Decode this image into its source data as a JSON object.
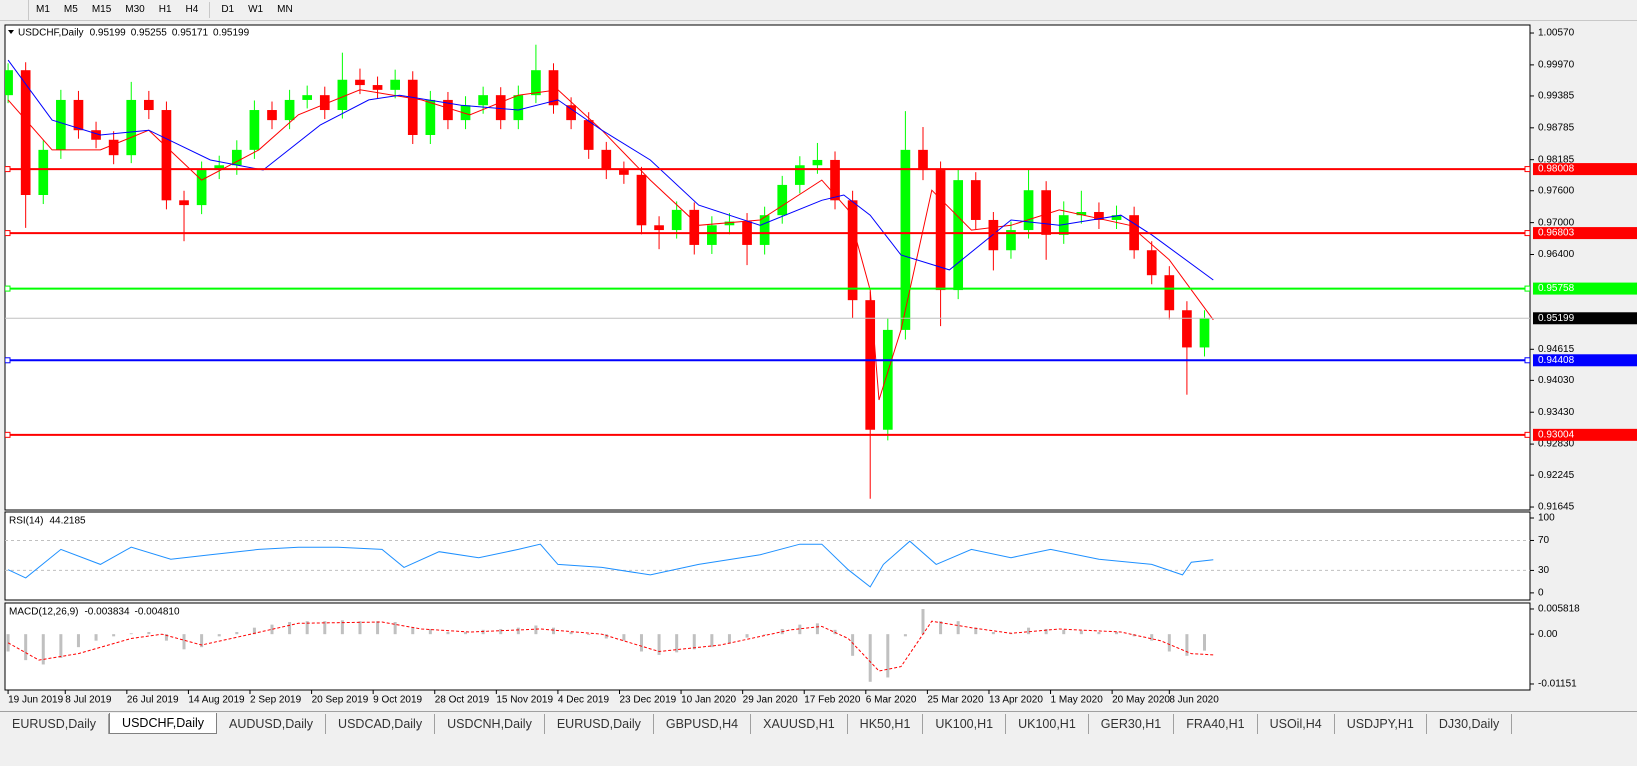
{
  "toolbar": {
    "timeframes": [
      "M1",
      "M5",
      "M15",
      "M30",
      "H1",
      "H4",
      "D1",
      "W1",
      "MN"
    ]
  },
  "chart_data": [
    {
      "type": "candlestick",
      "title": "USDCHF,Daily",
      "readout": [
        0.95199,
        0.95255,
        0.95171,
        0.95199
      ],
      "up_color": "#00ff00",
      "down_color": "#ff0000",
      "x": [
        0,
        4,
        8,
        12,
        16,
        20,
        24,
        28,
        32,
        36,
        40,
        44,
        48,
        52,
        56,
        60,
        64,
        68,
        72,
        76,
        80,
        84,
        88,
        92,
        96,
        100,
        104,
        108,
        112,
        116,
        120,
        124,
        128,
        132,
        136,
        140,
        144,
        148,
        152,
        156,
        160,
        164,
        168,
        172,
        176,
        180,
        184,
        188,
        192,
        196,
        200,
        204,
        208,
        212,
        216,
        220,
        224,
        228,
        232,
        236,
        240,
        244,
        248,
        252,
        256,
        260,
        264,
        268,
        272
      ],
      "open": [
        0.994,
        0.9987,
        0.9752,
        0.9837,
        0.9931,
        0.9874,
        0.9856,
        0.9827,
        0.9931,
        0.9912,
        0.9742,
        0.9733,
        0.9799,
        0.9808,
        0.9837,
        0.9912,
        0.9893,
        0.9931,
        0.994,
        0.9912,
        0.9969,
        0.9959,
        0.995,
        0.9969,
        0.9865,
        0.9931,
        0.9893,
        0.9921,
        0.994,
        0.9893,
        0.994,
        0.9987,
        0.9921,
        0.9893,
        0.9837,
        0.9799,
        0.979,
        0.9695,
        0.9686,
        0.9724,
        0.9658,
        0.9695,
        0.9702,
        0.9658,
        0.9714,
        0.9771,
        0.9808,
        0.9818,
        0.9742,
        0.9554,
        0.931,
        0.9498,
        0.9837,
        0.9799,
        0.9573,
        0.978,
        0.9705,
        0.9648,
        0.9686,
        0.9761,
        0.9677,
        0.9714,
        0.972,
        0.9705,
        0.9714,
        0.9648,
        0.9601,
        0.9535,
        0.9465
      ],
      "high": [
        1.0,
        1.0002,
        0.9855,
        0.995,
        0.9948,
        0.989,
        0.9872,
        0.9965,
        0.9948,
        0.9928,
        0.976,
        0.9815,
        0.9826,
        0.9855,
        0.993,
        0.9928,
        0.995,
        0.9958,
        0.9956,
        1.002,
        0.999,
        0.9975,
        0.9988,
        0.9985,
        0.9948,
        0.9946,
        0.9938,
        0.9956,
        0.9955,
        0.9958,
        1.0035,
        1.0,
        0.9936,
        0.9908,
        0.9852,
        0.9815,
        0.9805,
        0.9712,
        0.974,
        0.9738,
        0.9712,
        0.9718,
        0.9718,
        0.973,
        0.9788,
        0.9825,
        0.985,
        0.9834,
        0.976,
        0.957,
        0.952,
        0.991,
        0.988,
        0.9815,
        0.98,
        0.9795,
        0.972,
        0.9702,
        0.98,
        0.9778,
        0.974,
        0.976,
        0.9738,
        0.9732,
        0.973,
        0.9665,
        0.9618,
        0.9552,
        0.9535
      ],
      "low": [
        0.9925,
        0.969,
        0.9735,
        0.982,
        0.9858,
        0.984,
        0.981,
        0.9812,
        0.9895,
        0.9725,
        0.9665,
        0.9716,
        0.9782,
        0.979,
        0.982,
        0.9876,
        0.9876,
        0.9915,
        0.9895,
        0.9896,
        0.9942,
        0.9934,
        0.9934,
        0.9848,
        0.9848,
        0.9876,
        0.9876,
        0.9905,
        0.9876,
        0.9876,
        0.9925,
        0.9905,
        0.9876,
        0.982,
        0.9782,
        0.9773,
        0.9678,
        0.965,
        0.967,
        0.964,
        0.9641,
        0.9678,
        0.962,
        0.964,
        0.9698,
        0.9755,
        0.9792,
        0.9725,
        0.952,
        0.918,
        0.929,
        0.948,
        0.978,
        0.9505,
        0.9556,
        0.9688,
        0.961,
        0.9632,
        0.967,
        0.963,
        0.966,
        0.9698,
        0.9688,
        0.9688,
        0.9632,
        0.9584,
        0.9518,
        0.9376,
        0.9448
      ],
      "close": [
        0.9987,
        0.9752,
        0.9837,
        0.9931,
        0.9874,
        0.9856,
        0.9827,
        0.9931,
        0.9912,
        0.9742,
        0.9733,
        0.9799,
        0.9808,
        0.9837,
        0.9912,
        0.9893,
        0.9931,
        0.994,
        0.9912,
        0.9969,
        0.9959,
        0.995,
        0.9969,
        0.9865,
        0.9931,
        0.9893,
        0.9921,
        0.994,
        0.9893,
        0.994,
        0.9987,
        0.9921,
        0.9893,
        0.9837,
        0.9799,
        0.979,
        0.9695,
        0.9686,
        0.9724,
        0.9658,
        0.9695,
        0.9702,
        0.9658,
        0.9714,
        0.9771,
        0.9808,
        0.9818,
        0.9742,
        0.9554,
        0.931,
        0.9498,
        0.9837,
        0.9799,
        0.9573,
        0.978,
        0.9705,
        0.9648,
        0.9686,
        0.9761,
        0.9677,
        0.9714,
        0.972,
        0.9705,
        0.9714,
        0.9648,
        0.9601,
        0.9535,
        0.9465,
        0.952
      ],
      "lines": [
        {
          "color": "#ff0000",
          "x": [
            0,
            10,
            21,
            32,
            44,
            57,
            66,
            80,
            94,
            105,
            116,
            125,
            135,
            146,
            157,
            171,
            185,
            191,
            196,
            198,
            203,
            210,
            219,
            228,
            239,
            255,
            264,
            274
          ],
          "values": [
            0.9931,
            0.9837,
            0.9837,
            0.9874,
            0.978,
            0.9837,
            0.9903,
            0.995,
            0.9931,
            0.9903,
            0.994,
            0.995,
            0.9874,
            0.978,
            0.9695,
            0.9705,
            0.978,
            0.9724,
            0.9573,
            0.9366,
            0.9498,
            0.9761,
            0.9686,
            0.9695,
            0.9724,
            0.9695,
            0.963,
            0.9517
          ]
        },
        {
          "color": "#0000ff",
          "x": [
            0,
            10,
            21,
            32,
            46,
            58,
            71,
            82,
            89,
            103,
            116,
            125,
            135,
            146,
            157,
            171,
            185,
            190,
            196,
            203,
            214,
            228,
            239,
            253,
            260,
            274
          ],
          "values": [
            1.0006,
            0.9893,
            0.9865,
            0.9874,
            0.9818,
            0.9799,
            0.9884,
            0.9931,
            0.994,
            0.9921,
            0.9912,
            0.9931,
            0.9874,
            0.9818,
            0.9733,
            0.9695,
            0.9742,
            0.9752,
            0.9714,
            0.9639,
            0.9611,
            0.9705,
            0.9695,
            0.9714,
            0.9677,
            0.9592
          ]
        }
      ],
      "levels": [
        {
          "value": 0.98008,
          "color": "#ff0000"
        },
        {
          "value": 0.96803,
          "color": "#ff0000"
        },
        {
          "value": 0.95758,
          "color": "#00ff00"
        },
        {
          "value": 0.94408,
          "color": "#0000ff"
        },
        {
          "value": 0.93004,
          "color": "#ff0000"
        }
      ],
      "last_price": 0.95199,
      "xlim": [
        -0.7,
        346
      ],
      "ylim": [
        0.91589,
        1.00721
      ],
      "yticks": [
        {
          "value": 1.0057,
          "label": "1.00570"
        },
        {
          "value": 0.9997,
          "label": "0.99970"
        },
        0.99385,
        0.98785,
        0.98185,
        {
          "value": 0.976,
          "label": "0.97600"
        },
        {
          "value": 0.97,
          "label": "0.97000"
        },
        {
          "value": 0.964,
          "label": "0.96400"
        },
        0.94615,
        {
          "value": 0.9403,
          "label": "0.94030"
        },
        {
          "value": 0.9343,
          "label": "0.93430"
        },
        {
          "value": 0.9283,
          "label": "0.92830"
        },
        0.92245,
        0.91645
      ],
      "xticks": [
        {
          "value": 0,
          "label": "19 Jun 2019"
        },
        {
          "value": 13,
          "label": "8 Jul 2019"
        },
        {
          "value": 27,
          "label": "26 Jul 2019"
        },
        {
          "value": 41,
          "label": "14 Aug 2019"
        },
        {
          "value": 55,
          "label": "2 Sep 2019"
        },
        {
          "value": 69,
          "label": "20 Sep 2019"
        },
        {
          "value": 83,
          "label": "9 Oct 2019"
        },
        {
          "value": 97,
          "label": "28 Oct 2019"
        },
        {
          "value": 111,
          "label": "15 Nov 2019"
        },
        {
          "value": 125,
          "label": "4 Dec 2019"
        },
        {
          "value": 139,
          "label": "23 Dec 2019"
        },
        {
          "value": 153,
          "label": "10 Jan 2020"
        },
        {
          "value": 167,
          "label": "29 Jan 2020"
        },
        {
          "value": 181,
          "label": "17 Feb 2020"
        },
        {
          "value": 195,
          "label": "6 Mar 2020"
        },
        {
          "value": 209,
          "label": "25 Mar 2020"
        },
        {
          "value": 223,
          "label": "13 Apr 2020"
        },
        {
          "value": 237,
          "label": "1 May 2020"
        },
        {
          "value": 251,
          "label": "20 May 2020"
        },
        {
          "value": 264,
          "label": "8 Jun 2020"
        }
      ]
    },
    {
      "type": "line",
      "title": "RSI(14)",
      "readout": [
        44.2185
      ],
      "color": "#1e90ff",
      "x": [
        0,
        4,
        12,
        21,
        28,
        37,
        46,
        57,
        66,
        75,
        85,
        90,
        98,
        107,
        116,
        121,
        125,
        135,
        146,
        157,
        171,
        180,
        185,
        191,
        196,
        199,
        205,
        211,
        219,
        228,
        237,
        248,
        260,
        267,
        269,
        274
      ],
      "values": [
        31,
        20,
        58,
        38,
        61,
        45,
        51,
        58,
        61,
        61,
        58,
        34,
        55,
        47,
        58,
        65,
        38,
        34,
        24,
        38,
        51,
        65,
        65,
        31,
        8,
        38,
        69,
        38,
        58,
        47,
        58,
        45,
        38,
        24,
        41,
        44.2
      ],
      "levels": [
        70,
        30
      ],
      "xlim": [
        -0.7,
        346
      ],
      "ylim": [
        -9.5,
        108
      ],
      "yticks": [
        100,
        70,
        30,
        0
      ]
    },
    {
      "type": "macd",
      "title": "MACD(12,26,9)",
      "readout": [
        -0.003834,
        {
          "value": -0.00481,
          "label": "-0.004810"
        }
      ],
      "bar_color": "#c0c0c0",
      "signal_color": "#ff0000",
      "x": [
        0,
        4,
        8,
        12,
        16,
        20,
        24,
        28,
        32,
        36,
        40,
        44,
        48,
        52,
        56,
        60,
        64,
        68,
        72,
        76,
        80,
        84,
        88,
        92,
        96,
        100,
        104,
        108,
        112,
        116,
        120,
        124,
        128,
        132,
        136,
        140,
        144,
        148,
        152,
        156,
        160,
        164,
        168,
        172,
        176,
        180,
        184,
        188,
        192,
        196,
        200,
        204,
        208,
        212,
        216,
        220,
        224,
        228,
        232,
        236,
        240,
        244,
        248,
        252,
        256,
        260,
        264,
        268,
        272
      ],
      "values": [
        -0.004,
        -0.006,
        -0.007,
        -0.0055,
        -0.003,
        -0.0015,
        -0.0005,
        0.0002,
        0.0005,
        -0.0015,
        -0.0035,
        -0.003,
        -0.0005,
        0.0005,
        0.0015,
        0.0022,
        0.0028,
        0.003,
        0.003,
        0.0032,
        0.003,
        0.003,
        0.0028,
        0.0015,
        0.0012,
        0.0005,
        0.0005,
        0.001,
        0.0012,
        0.0015,
        0.002,
        0.0015,
        0.0005,
        -0.0002,
        -0.001,
        -0.0015,
        -0.004,
        -0.0048,
        -0.0042,
        -0.0035,
        -0.003,
        -0.0022,
        -0.0008,
        0,
        0.0012,
        0.0022,
        0.0025,
        0.001,
        -0.005,
        -0.011,
        -0.01,
        -0.0005,
        0.0058,
        0.003,
        0.003,
        0.0015,
        0.0005,
        0.0002,
        0.0015,
        0.0012,
        0.001,
        0.0008,
        0.0005,
        0.0005,
        -0.0005,
        -0.0015,
        -0.004,
        -0.005,
        -0.0038
      ],
      "signal_x": [
        0,
        7,
        16,
        28,
        35,
        44,
        53,
        66,
        85,
        94,
        105,
        121,
        135,
        148,
        162,
        178,
        185,
        191,
        198,
        203,
        210,
        219,
        228,
        239,
        253,
        262,
        269,
        274
      ],
      "signal": [
        -0.002,
        -0.006,
        -0.0045,
        -0.001,
        0,
        -0.0025,
        -0.0005,
        0.0025,
        0.0028,
        0.0012,
        0.0005,
        0.0012,
        0,
        -0.004,
        -0.0025,
        0.001,
        0.0018,
        -0.001,
        -0.0085,
        -0.0075,
        0.003,
        0.0015,
        0.0002,
        0.0012,
        0.0005,
        -0.0015,
        -0.0045,
        -0.0048
      ],
      "xlim": [
        -0.7,
        346
      ],
      "ylim": [
        -0.0129,
        0.0072
      ],
      "yticks": [
        0.005818,
        {
          "value": 0,
          "label": "0.00"
        },
        -0.01151
      ]
    }
  ],
  "tabs": [
    "EURUSD,Daily",
    "USDCHF,Daily",
    "AUDUSD,Daily",
    "USDCAD,Daily",
    "USDCNH,Daily",
    "EURUSD,Daily",
    "GBPUSD,H4",
    "XAUUSD,H1",
    "HK50,H1",
    "UK100,H1",
    "UK100,H1",
    "GER30,H1",
    "FRA40,H1",
    "USOil,H4",
    "USDJPY,H1",
    "DJ30,Daily"
  ],
  "active_tab": 1
}
